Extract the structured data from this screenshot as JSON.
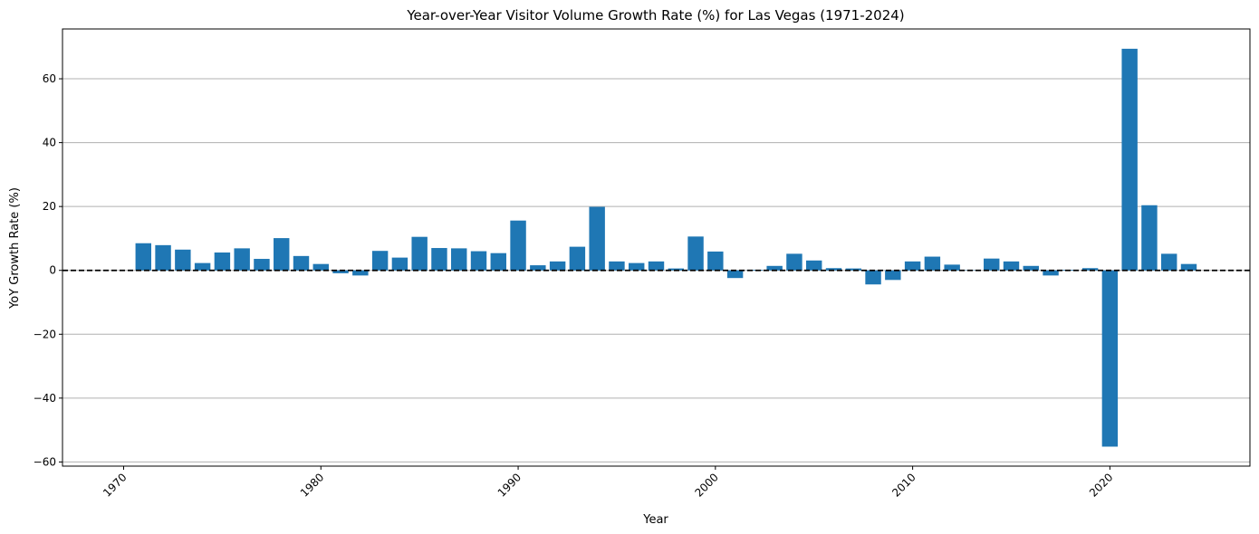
{
  "chart_data": {
    "type": "bar",
    "title": "Year-over-Year Visitor Volume Growth Rate (%) for Las Vegas (1971-2024)",
    "xlabel": "Year",
    "ylabel": "YoY Growth Rate (%)",
    "xlim": [
      1966.9,
      2027.1
    ],
    "ylim": [
      -61.3,
      75.6
    ],
    "x_ticks": [
      1970,
      1980,
      1990,
      2000,
      2010,
      2020
    ],
    "y_ticks": [
      -60,
      -40,
      -20,
      0,
      20,
      40,
      60
    ],
    "grid": "horizontal",
    "baseline": 0,
    "bar_color": "#1f77b4",
    "baseline_color": "#000000",
    "grid_color": "#b0b0b0",
    "years": [
      1971,
      1972,
      1973,
      1974,
      1975,
      1976,
      1977,
      1978,
      1979,
      1980,
      1981,
      1982,
      1983,
      1984,
      1985,
      1986,
      1987,
      1988,
      1989,
      1990,
      1991,
      1992,
      1993,
      1994,
      1995,
      1996,
      1997,
      1998,
      1999,
      2000,
      2001,
      2002,
      2003,
      2004,
      2005,
      2006,
      2007,
      2008,
      2009,
      2010,
      2011,
      2012,
      2013,
      2014,
      2015,
      2016,
      2017,
      2018,
      2019,
      2020,
      2021,
      2022,
      2023,
      2024
    ],
    "values": [
      8.5,
      7.9,
      6.5,
      2.3,
      5.6,
      6.9,
      3.6,
      10.1,
      4.5,
      2.0,
      -0.9,
      -1.6,
      6.1,
      4.0,
      10.5,
      7.0,
      6.9,
      6.0,
      5.4,
      15.6,
      1.6,
      2.8,
      7.4,
      19.9,
      2.8,
      2.3,
      2.8,
      0.6,
      10.6,
      5.9,
      -2.4,
      0.2,
      1.4,
      5.2,
      3.1,
      0.7,
      0.6,
      -4.4,
      -3.0,
      2.8,
      4.3,
      1.8,
      0.1,
      3.7,
      2.8,
      1.4,
      -1.6,
      0.2,
      0.7,
      -55.2,
      69.4,
      20.4,
      5.2,
      2.0
    ]
  }
}
